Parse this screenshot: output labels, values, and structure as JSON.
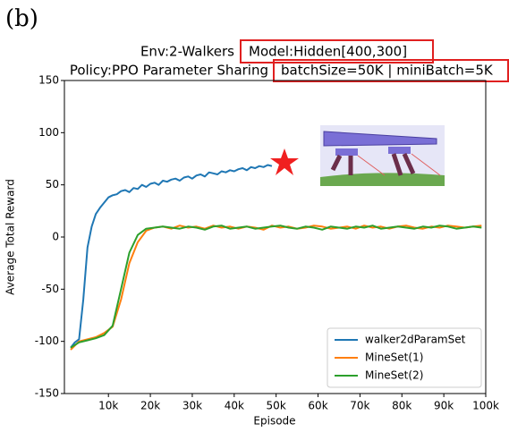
{
  "chart_data": {
    "type": "line",
    "panel_label": "(b)",
    "title": [
      "Env:2-Walkers",
      "Model:Hidden[400,300]"
    ],
    "subtitle": [
      "Policy:PPO Parameter Sharing",
      "batchSize=50K | miniBatch=5K"
    ],
    "x_label": "Episode",
    "y_label": "Average Total Reward",
    "xlim": [
      -500,
      100000
    ],
    "ylim": [
      -150,
      150
    ],
    "xticks": [
      {
        "value": 10000,
        "label": "10k"
      },
      {
        "value": 20000,
        "label": "20k"
      },
      {
        "value": 30000,
        "label": "30k"
      },
      {
        "value": 40000,
        "label": "40k"
      },
      {
        "value": 50000,
        "label": "50k"
      },
      {
        "value": 60000,
        "label": "60k"
      },
      {
        "value": 70000,
        "label": "70k"
      },
      {
        "value": 80000,
        "label": "80k"
      },
      {
        "value": 90000,
        "label": "90k"
      },
      {
        "value": 100000,
        "label": "100k"
      }
    ],
    "yticks": [
      150,
      100,
      50,
      0,
      -50,
      -100,
      -150
    ],
    "grid": false,
    "legend": "lower right",
    "series": [
      {
        "name": "walker2dParamSet",
        "color": "#1f77b4",
        "x": [
          1000,
          2000,
          3000,
          4000,
          5000,
          6000,
          7000,
          8000,
          9000,
          10000,
          11000,
          12000,
          13000,
          14000,
          15000,
          16000,
          17000,
          18000,
          19000,
          20000,
          21000,
          22000,
          23000,
          24000,
          25000,
          26000,
          27000,
          28000,
          29000,
          30000,
          31000,
          32000,
          33000,
          34000,
          35000,
          36000,
          37000,
          38000,
          39000,
          40000,
          41000,
          42000,
          43000,
          44000,
          45000,
          46000,
          47000,
          48000,
          49000
        ],
        "values": [
          -106,
          -101,
          -98,
          -60,
          -10,
          10,
          22,
          28,
          33,
          38,
          40,
          41,
          44,
          45,
          43,
          47,
          46,
          50,
          48,
          51,
          52,
          50,
          54,
          53,
          55,
          56,
          54,
          57,
          58,
          56,
          59,
          60,
          58,
          62,
          61,
          60,
          63,
          62,
          64,
          63,
          65,
          66,
          64,
          67,
          66,
          68,
          67,
          69,
          68
        ]
      },
      {
        "name": "MineSet(1)",
        "color": "#ff7f0e",
        "x": [
          1000,
          3000,
          5000,
          7000,
          9000,
          11000,
          13000,
          15000,
          17000,
          19000,
          21000,
          23000,
          25000,
          27000,
          29000,
          31000,
          33000,
          35000,
          37000,
          39000,
          41000,
          43000,
          45000,
          47000,
          49000,
          51000,
          53000,
          55000,
          57000,
          59000,
          61000,
          63000,
          65000,
          67000,
          69000,
          71000,
          73000,
          75000,
          77000,
          79000,
          81000,
          83000,
          85000,
          87000,
          89000,
          91000,
          93000,
          95000,
          97000,
          99000
        ],
        "values": [
          -108,
          -100,
          -98,
          -96,
          -92,
          -86,
          -60,
          -25,
          -5,
          6,
          9,
          10,
          8,
          11,
          9,
          10,
          8,
          11,
          9,
          10,
          8,
          10,
          9,
          7,
          11,
          9,
          10,
          8,
          9,
          11,
          10,
          8,
          9,
          10,
          8,
          11,
          9,
          10,
          8,
          10,
          11,
          9,
          8,
          10,
          9,
          11,
          10,
          9,
          10,
          11
        ]
      },
      {
        "name": "MineSet(2)",
        "color": "#2ca02c",
        "x": [
          1000,
          3000,
          5000,
          7000,
          9000,
          11000,
          13000,
          15000,
          17000,
          19000,
          21000,
          23000,
          25000,
          27000,
          29000,
          31000,
          33000,
          35000,
          37000,
          39000,
          41000,
          43000,
          45000,
          47000,
          49000,
          51000,
          53000,
          55000,
          57000,
          59000,
          61000,
          63000,
          65000,
          67000,
          69000,
          71000,
          73000,
          75000,
          77000,
          79000,
          81000,
          83000,
          85000,
          87000,
          89000,
          91000,
          93000,
          95000,
          97000,
          99000
        ],
        "values": [
          -106,
          -101,
          -99,
          -97,
          -94,
          -85,
          -50,
          -15,
          2,
          8,
          9,
          10,
          9,
          8,
          10,
          9,
          7,
          10,
          11,
          8,
          9,
          10,
          8,
          9,
          10,
          11,
          9,
          8,
          10,
          9,
          7,
          10,
          9,
          8,
          10,
          9,
          11,
          8,
          9,
          10,
          9,
          8,
          10,
          9,
          11,
          10,
          8,
          9,
          10,
          9
        ]
      }
    ]
  }
}
